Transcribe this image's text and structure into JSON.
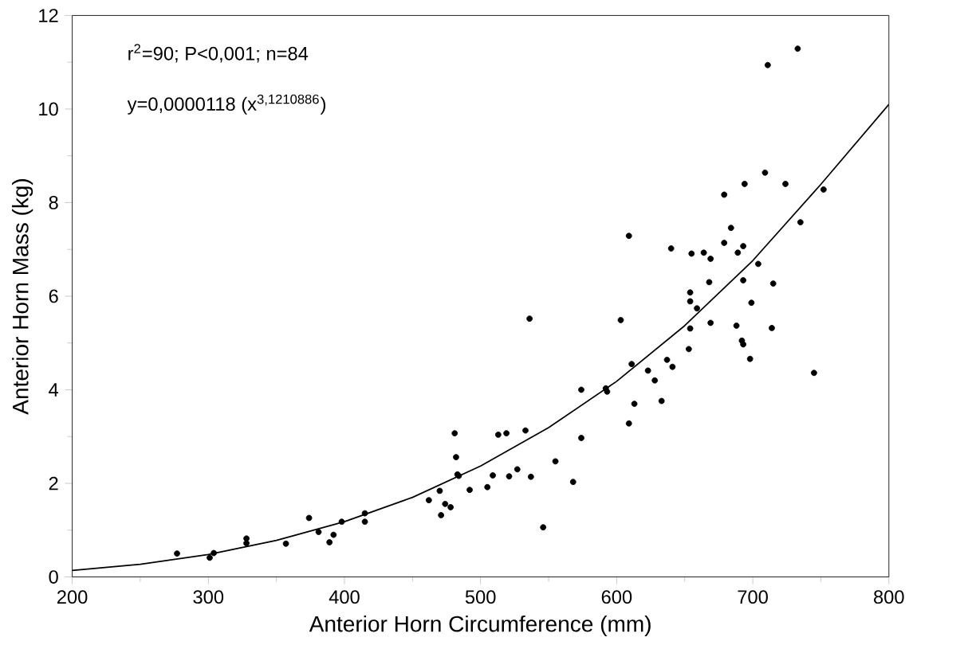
{
  "chart_data": {
    "type": "scatter",
    "xlabel": "Anterior Horn Circumference (mm)",
    "ylabel": "Anterior Horn Mass (kg)",
    "annotations": [
      "r$^{2}$=90; P<0,001; n=84",
      "y=0,0000118 (x$^{3,1210886}$)"
    ],
    "xlim": [
      200,
      800
    ],
    "ylim": [
      0,
      12
    ],
    "xticks": [
      200,
      300,
      400,
      500,
      600,
      700,
      800
    ],
    "yticks": [
      0,
      2,
      4,
      6,
      8,
      10,
      12
    ],
    "grid": false,
    "series": [
      {
        "type": "scatter",
        "marker": "circle",
        "color": "#000000",
        "x": [
          277,
          301,
          304,
          328,
          328,
          357,
          374,
          381,
          389,
          392,
          398,
          415,
          415,
          462,
          470,
          471,
          474,
          478,
          481,
          482,
          483,
          484,
          492,
          505,
          509,
          513,
          519,
          521,
          527,
          533,
          536,
          537,
          546,
          555,
          568,
          574,
          574,
          592,
          593,
          603,
          609,
          611,
          613,
          623,
          628,
          633,
          637,
          641,
          653,
          654,
          654,
          654,
          659,
          669,
          688,
          692,
          693,
          698,
          699,
          714,
          745,
          609,
          640,
          655,
          664,
          669,
          668,
          679,
          684,
          679,
          689,
          693,
          694,
          704,
          693,
          709,
          711,
          724,
          733,
          715,
          735,
          752
        ],
        "values": [
          0.5,
          0.41,
          0.51,
          0.82,
          0.72,
          0.71,
          1.26,
          0.96,
          0.74,
          0.9,
          1.18,
          1.36,
          1.18,
          1.64,
          1.84,
          1.32,
          1.56,
          1.49,
          3.07,
          2.56,
          2.19,
          2.16,
          1.86,
          1.92,
          2.17,
          3.04,
          3.07,
          2.15,
          2.3,
          3.13,
          5.52,
          2.14,
          1.06,
          2.47,
          2.03,
          2.97,
          4.0,
          4.03,
          3.96,
          5.49,
          3.28,
          4.55,
          3.7,
          4.41,
          4.2,
          3.76,
          4.64,
          4.49,
          4.87,
          5.31,
          5.89,
          6.08,
          5.74,
          5.43,
          5.37,
          5.05,
          4.97,
          4.66,
          5.86,
          5.32,
          4.36,
          7.29,
          7.02,
          6.91,
          6.93,
          6.8,
          6.3,
          7.14,
          7.46,
          8.17,
          6.93,
          7.07,
          8.4,
          6.69,
          6.34,
          8.64,
          10.94,
          8.4,
          11.29,
          6.27,
          7.58,
          8.28
        ]
      },
      {
        "type": "line",
        "color": "#000000",
        "marker": "none",
        "x": [
          200,
          250,
          300,
          350,
          400,
          450,
          500,
          550,
          600,
          650,
          700,
          750,
          800
        ],
        "values": [
          0.14,
          0.27,
          0.48,
          0.78,
          1.18,
          1.7,
          2.37,
          3.19,
          4.18,
          5.37,
          6.76,
          8.39,
          10.1
        ]
      }
    ]
  }
}
